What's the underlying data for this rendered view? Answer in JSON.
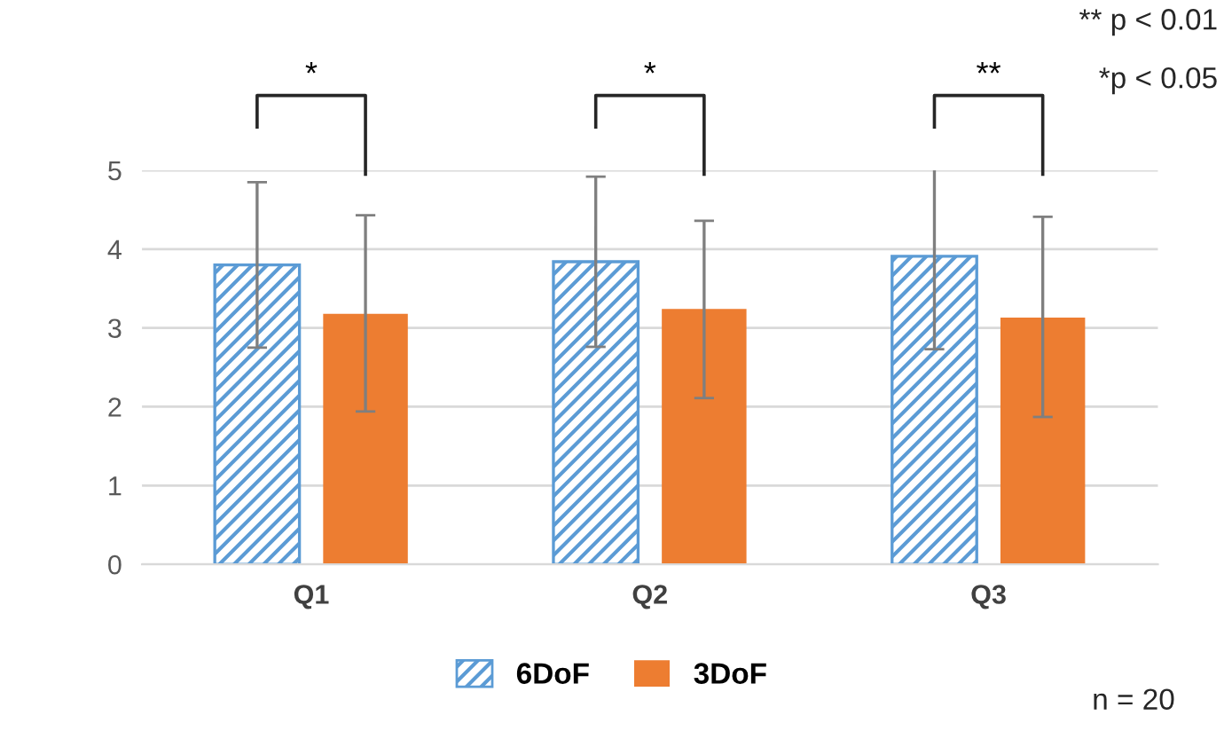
{
  "chart_data": {
    "type": "bar",
    "categories": [
      "Q1",
      "Q2",
      "Q3"
    ],
    "series": [
      {
        "name": "6DoF",
        "color": "#5b9bd5",
        "values": [
          3.8,
          3.84,
          3.91
        ],
        "errors": [
          [
            2.75,
            4.85
          ],
          [
            2.76,
            4.92
          ],
          [
            2.73,
            5.05
          ]
        ]
      },
      {
        "name": "3DoF",
        "color": "#ed7d31",
        "values": [
          3.18,
          3.24,
          3.13
        ],
        "errors": [
          [
            1.94,
            4.43
          ],
          [
            2.11,
            4.36
          ],
          [
            1.87,
            4.41
          ]
        ]
      }
    ],
    "ylim": [
      0,
      5
    ],
    "yticks": [
      0,
      1,
      2,
      3,
      4,
      5
    ],
    "grid": "y",
    "legend": "bottom",
    "annotations": [
      "*",
      "*",
      "**",
      "** p < 0.01",
      "*p < 0.05",
      "n = 20"
    ]
  }
}
